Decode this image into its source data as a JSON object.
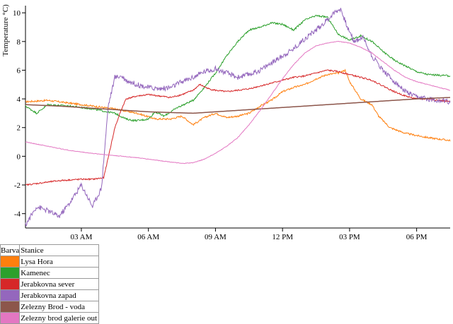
{
  "chart_data": {
    "type": "line",
    "title": "",
    "xlabel": "",
    "ylabel": "Temperature °C)",
    "ylim": [
      -5,
      10.5
    ],
    "xlim": [
      0.5,
      19.5
    ],
    "y_ticks": [
      -4,
      -2,
      0,
      2,
      4,
      6,
      8,
      10
    ],
    "x_ticks": [
      {
        "value": 3,
        "label": "03 AM"
      },
      {
        "value": 6,
        "label": "06 AM"
      },
      {
        "value": 9,
        "label": "09 AM"
      },
      {
        "value": 12,
        "label": "12 PM"
      },
      {
        "value": 15,
        "label": "03 PM"
      },
      {
        "value": 18,
        "label": "06 PM"
      }
    ],
    "grid": false,
    "legend_position": "bottom-left",
    "series": [
      {
        "name": "Lysa Hora",
        "color": "#ff7f0e",
        "noise": 0.06,
        "x": [
          0.5,
          1.5,
          2.5,
          3.5,
          4.5,
          5.5,
          6.3,
          7.0,
          7.5,
          8.0,
          8.5,
          9.0,
          9.5,
          10.0,
          10.5,
          11.0,
          11.5,
          12.0,
          12.5,
          13.0,
          13.5,
          14.0,
          14.5,
          14.8,
          15.0,
          15.5,
          16.0,
          16.3,
          16.8,
          17.5,
          18.5,
          19.5
        ],
        "y": [
          3.8,
          3.9,
          3.7,
          3.5,
          3.3,
          3.0,
          2.6,
          2.6,
          2.8,
          2.2,
          2.7,
          3.0,
          2.7,
          2.8,
          3.0,
          3.5,
          3.9,
          4.5,
          4.8,
          5.0,
          5.4,
          5.7,
          5.8,
          6.0,
          5.2,
          4.0,
          3.6,
          2.8,
          2.0,
          1.6,
          1.3,
          1.1
        ]
      },
      {
        "name": "Kamenec",
        "color": "#2ca02c",
        "noise": 0.06,
        "x": [
          0.5,
          1.0,
          1.5,
          2.5,
          3.5,
          4.5,
          5.0,
          5.3,
          5.6,
          6.0,
          6.3,
          6.7,
          7.3,
          8.0,
          8.5,
          9.0,
          9.5,
          10.0,
          10.5,
          11.0,
          11.5,
          12.0,
          12.5,
          13.0,
          13.5,
          14.0,
          14.5,
          15.0,
          15.5,
          16.0,
          16.5,
          17.0,
          17.5,
          18.0,
          18.5,
          19.5
        ],
        "y": [
          3.5,
          3.0,
          3.6,
          3.5,
          3.3,
          3.0,
          2.6,
          2.5,
          2.5,
          2.6,
          3.1,
          2.8,
          3.4,
          3.9,
          4.8,
          5.8,
          7.0,
          8.0,
          8.8,
          9.0,
          9.3,
          9.2,
          8.8,
          9.5,
          9.8,
          9.7,
          8.5,
          8.1,
          8.4,
          8.0,
          7.3,
          6.7,
          6.3,
          5.9,
          5.7,
          5.6
        ]
      },
      {
        "name": "Jerabkovna sever",
        "color": "#d62728",
        "noise": 0.05,
        "x": [
          0.5,
          1.0,
          2.0,
          3.0,
          3.5,
          4.0,
          4.5,
          4.8,
          5.0,
          5.5,
          6.0,
          6.5,
          7.0,
          7.5,
          8.0,
          8.3,
          8.7,
          9.0,
          9.5,
          10.0,
          10.5,
          11.0,
          11.5,
          12.0,
          12.5,
          13.0,
          13.5,
          14.0,
          14.5,
          15.0,
          15.5,
          16.0,
          16.5,
          17.0,
          17.5,
          18.0,
          18.5,
          19.5
        ],
        "y": [
          -2.0,
          -1.9,
          -1.7,
          -1.6,
          -1.6,
          -1.5,
          2.0,
          3.3,
          4.0,
          4.2,
          4.3,
          4.2,
          4.1,
          4.3,
          4.6,
          5.0,
          4.7,
          4.6,
          4.5,
          4.6,
          4.7,
          4.9,
          5.1,
          5.3,
          5.5,
          5.6,
          5.8,
          6.0,
          5.9,
          5.7,
          5.5,
          5.3,
          4.9,
          4.5,
          4.2,
          4.0,
          4.0,
          3.8
        ]
      },
      {
        "name": "Jerabkovna zapad",
        "color": "#9467bd",
        "noise": 0.18,
        "x": [
          0.5,
          1.0,
          1.5,
          2.0,
          2.5,
          3.0,
          3.5,
          3.9,
          4.2,
          4.5,
          4.8,
          5.0,
          5.5,
          6.0,
          6.5,
          7.0,
          7.5,
          8.0,
          8.5,
          9.0,
          9.5,
          10.0,
          10.5,
          11.0,
          11.5,
          12.0,
          12.5,
          13.0,
          13.5,
          14.0,
          14.3,
          14.6,
          14.9,
          15.2,
          15.6,
          16.0,
          16.5,
          17.0,
          17.5,
          18.0,
          18.5,
          19.5
        ],
        "y": [
          -4.8,
          -3.5,
          -3.8,
          -4.2,
          -3.2,
          -2.0,
          -3.5,
          -2.2,
          3.5,
          5.5,
          5.6,
          5.3,
          5.0,
          4.8,
          4.7,
          4.8,
          5.2,
          5.5,
          5.9,
          6.1,
          5.8,
          5.5,
          5.7,
          6.0,
          6.5,
          7.0,
          7.5,
          8.2,
          8.8,
          9.5,
          10.0,
          10.3,
          9.0,
          8.0,
          8.3,
          7.0,
          6.0,
          5.2,
          4.5,
          4.1,
          4.0,
          3.8
        ]
      },
      {
        "name": "Zelezny Brod - voda",
        "color": "#8c564b",
        "noise": 0.0,
        "x": [
          0.5,
          2.0,
          4.0,
          6.0,
          8.0,
          10.0,
          12.0,
          14.0,
          16.0,
          18.0,
          19.5
        ],
        "y": [
          3.6,
          3.5,
          3.3,
          3.1,
          3.0,
          3.2,
          3.4,
          3.6,
          3.8,
          4.0,
          4.1
        ]
      },
      {
        "name": "Zelezny brod galerie out",
        "color": "#e377c2",
        "noise": 0.02,
        "x": [
          0.5,
          1.5,
          2.5,
          3.5,
          4.5,
          5.5,
          6.5,
          7.5,
          8.0,
          8.5,
          9.0,
          9.5,
          10.0,
          10.5,
          11.0,
          11.5,
          12.0,
          12.5,
          13.0,
          13.5,
          14.0,
          14.5,
          15.0,
          15.5,
          16.0,
          16.5,
          17.0,
          17.5,
          18.0,
          18.5,
          19.5
        ],
        "y": [
          1.0,
          0.7,
          0.4,
          0.2,
          0.05,
          -0.1,
          -0.3,
          -0.5,
          -0.45,
          -0.2,
          0.2,
          0.7,
          1.3,
          2.2,
          3.2,
          4.3,
          5.4,
          6.4,
          7.2,
          7.7,
          7.9,
          8.0,
          7.9,
          7.6,
          7.2,
          6.6,
          6.0,
          5.5,
          5.2,
          5.0,
          4.6
        ]
      }
    ]
  },
  "legend": {
    "header_color": "Barva",
    "header_station": "Stanice"
  }
}
